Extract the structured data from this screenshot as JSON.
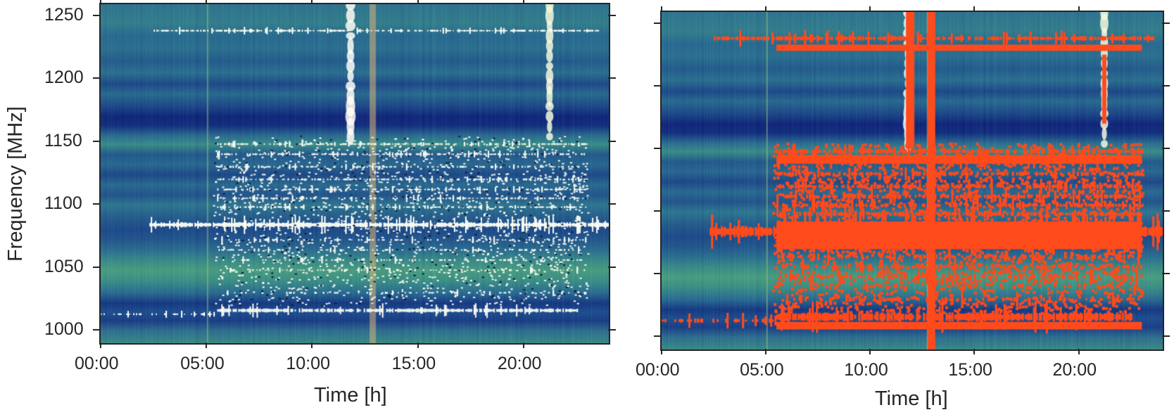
{
  "chart_data": [
    {
      "type": "heatmap",
      "title": "",
      "panel": "left",
      "description": "Waterfall spectrogram (frequency vs time) of radio intensity with RFI shown bright white",
      "xlabel": "Time [h]",
      "ylabel": "Frequency [MHz]",
      "xticks": [
        "00:00",
        "05:00",
        "10:00",
        "15:00",
        "20:00"
      ],
      "xtick_hours": [
        0,
        5,
        10,
        15,
        20
      ],
      "yticks": [
        "1000",
        "1050",
        "1100",
        "1150",
        "1200",
        "1250"
      ],
      "ytick_values": [
        1000,
        1050,
        1100,
        1150,
        1200,
        1250
      ],
      "xlim": [
        0,
        24
      ],
      "ylim": [
        990,
        1259
      ],
      "colormap": "YlGnBu-like (dark navy to teal to yellow-green to white)",
      "rfi_color": "#ffffff"
    },
    {
      "type": "heatmap",
      "title": "",
      "panel": "right",
      "description": "Same spectrogram with flagged RFI mask overlaid in red-orange",
      "xlabel": "Time [h]",
      "ylabel": "",
      "xticks": [
        "00:00",
        "05:00",
        "10:00",
        "15:00",
        "20:00"
      ],
      "xtick_hours": [
        0,
        5,
        10,
        15,
        20
      ],
      "yticks": [
        "",
        "",
        "",
        "",
        "",
        ""
      ],
      "ytick_values": [
        1000,
        1050,
        1100,
        1150,
        1200,
        1250
      ],
      "xlim": [
        0,
        24
      ],
      "ylim": [
        990,
        1259
      ],
      "mask_color": "#ff4a1c"
    }
  ],
  "spectrum": {
    "bands": [
      {
        "f": 990,
        "c": "#3a8a86"
      },
      {
        "f": 1000,
        "c": "#2f6f8f"
      },
      {
        "f": 1008,
        "c": "#1c3f86"
      },
      {
        "f": 1015,
        "c": "#1f4f8f"
      },
      {
        "f": 1022,
        "c": "#183a82"
      },
      {
        "f": 1030,
        "c": "#2a6a92"
      },
      {
        "f": 1040,
        "c": "#3c8f86"
      },
      {
        "f": 1048,
        "c": "#4a9c80"
      },
      {
        "f": 1056,
        "c": "#3a8a88"
      },
      {
        "f": 1064,
        "c": "#2c6e90"
      },
      {
        "f": 1072,
        "c": "#24588c"
      },
      {
        "f": 1080,
        "c": "#1f4b8a"
      },
      {
        "f": 1090,
        "c": "#265c8c"
      },
      {
        "f": 1100,
        "c": "#2f7690"
      },
      {
        "f": 1108,
        "c": "#24558c"
      },
      {
        "f": 1116,
        "c": "#2a6a90"
      },
      {
        "f": 1124,
        "c": "#1f4a88"
      },
      {
        "f": 1132,
        "c": "#2a6890"
      },
      {
        "f": 1140,
        "c": "#245a8c"
      },
      {
        "f": 1148,
        "c": "#3a8c88"
      },
      {
        "f": 1155,
        "c": "#2c6c90"
      },
      {
        "f": 1163,
        "c": "#14307e"
      },
      {
        "f": 1170,
        "c": "#12287a"
      },
      {
        "f": 1178,
        "c": "#1e4888"
      },
      {
        "f": 1188,
        "c": "#2a6a90"
      },
      {
        "f": 1196,
        "c": "#1f4a88"
      },
      {
        "f": 1205,
        "c": "#2c7090"
      },
      {
        "f": 1214,
        "c": "#255c8c"
      },
      {
        "f": 1224,
        "c": "#2c7090"
      },
      {
        "f": 1234,
        "c": "#2a6a90"
      },
      {
        "f": 1244,
        "c": "#347e8c"
      },
      {
        "f": 1259,
        "c": "#2f7490"
      }
    ],
    "rfi_lines": [
      {
        "f": 1084,
        "h0": 2.3,
        "h1": 24,
        "w": 5,
        "density": 0.95
      },
      {
        "f": 1016,
        "h0": 5.5,
        "h1": 22.5,
        "w": 4,
        "density": 0.9
      },
      {
        "f": 1013,
        "h0": 0,
        "h1": 5.5,
        "w": 2,
        "density": 0.3
      },
      {
        "f": 1238,
        "h0": 2.5,
        "h1": 23.5,
        "w": 2,
        "density": 0.7
      },
      {
        "f": 1148,
        "h0": 5.5,
        "h1": 23,
        "w": 2,
        "density": 0.6
      },
      {
        "f": 1140,
        "h0": 5.5,
        "h1": 23,
        "w": 2,
        "density": 0.55
      },
      {
        "f": 1130,
        "h0": 5.5,
        "h1": 23,
        "w": 2,
        "density": 0.45
      },
      {
        "f": 1120,
        "h0": 5.5,
        "h1": 23,
        "w": 2,
        "density": 0.55
      },
      {
        "f": 1112,
        "h0": 5.5,
        "h1": 23,
        "w": 2,
        "density": 0.5
      },
      {
        "f": 1105,
        "h0": 5.5,
        "h1": 23,
        "w": 2,
        "density": 0.5
      },
      {
        "f": 1098,
        "h0": 5.5,
        "h1": 23,
        "w": 2,
        "density": 0.5
      },
      {
        "f": 1072,
        "h0": 5.5,
        "h1": 23,
        "w": 2,
        "density": 0.35
      },
      {
        "f": 1064,
        "h0": 5.5,
        "h1": 23,
        "w": 2,
        "density": 0.35
      },
      {
        "f": 1056,
        "h0": 5.5,
        "h1": 23,
        "w": 2,
        "density": 0.3
      },
      {
        "f": 1048,
        "h0": 5.5,
        "h1": 23,
        "w": 2,
        "density": 0.3
      },
      {
        "f": 1030,
        "h0": 5.5,
        "h1": 23,
        "w": 2,
        "density": 0.3
      }
    ],
    "vertical_lines": [
      {
        "h": 11.8,
        "f0": 1150,
        "f1": 1259,
        "w": 0.25,
        "color": "#fffdf6"
      },
      {
        "h": 21.2,
        "f0": 1150,
        "f1": 1259,
        "w": 0.18,
        "color": "#f4f8dc"
      },
      {
        "h": 12.85,
        "f0": 990,
        "f1": 1259,
        "w": 0.3,
        "color": "#d9b57a"
      },
      {
        "h": 5.05,
        "f0": 990,
        "f1": 1259,
        "w": 0.06,
        "color": "#9ac27a"
      }
    ]
  }
}
